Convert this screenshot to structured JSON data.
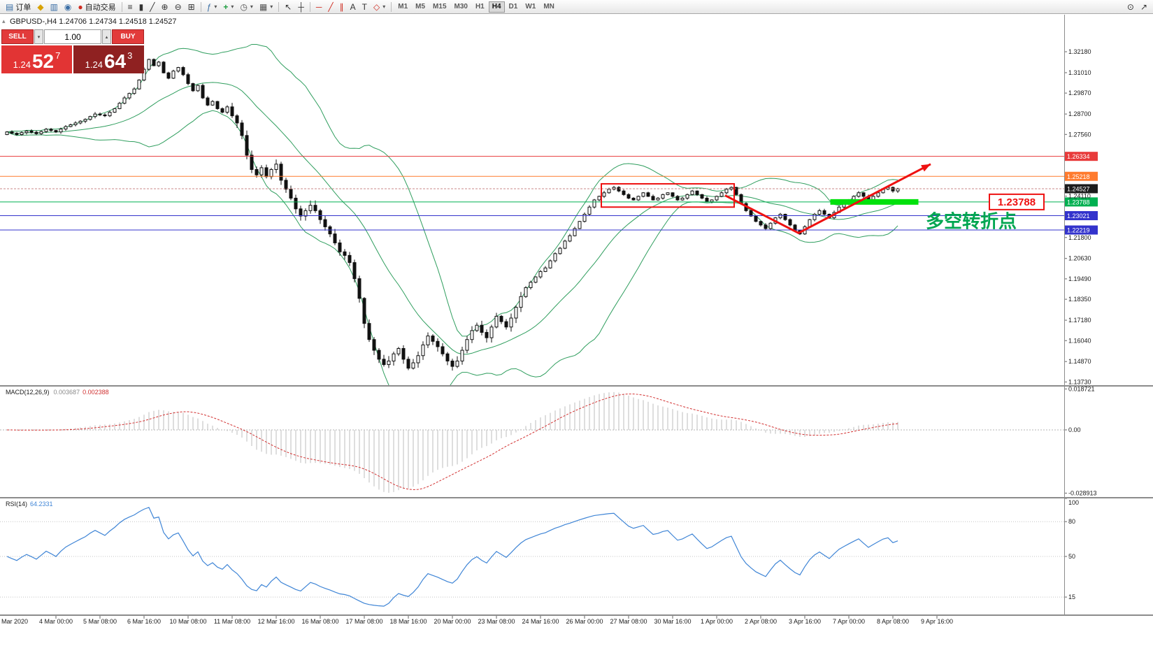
{
  "toolbar": {
    "order_label": "订单",
    "autotrade_label": "自动交易",
    "timeframes": [
      "M1",
      "M5",
      "M15",
      "M30",
      "H1",
      "H4",
      "D1",
      "W1",
      "MN"
    ],
    "active_timeframe": "H4",
    "icons": {
      "order": "▤",
      "chart": "◆",
      "profile": "▥",
      "web": "◉",
      "autotrade": "●",
      "bars": "≡",
      "candles": "▮",
      "linechart": "╱",
      "zoom_in": "⊕",
      "zoom_out": "⊖",
      "tile": "⊞",
      "indicators": "ƒ",
      "add": "+",
      "periods": "◷",
      "template": "▦",
      "cursor": "↖",
      "crosshair": "┼",
      "hline": "─",
      "trendline": "╱",
      "channel": "∥",
      "text": "A",
      "label": "T",
      "shapes": "◇",
      "caret": "▾",
      "caret_up": "▴",
      "caret_down": "▾",
      "magnifier": "⊙",
      "pointer": "↗",
      "collapse": "▴"
    }
  },
  "symbol_info": {
    "text": "GBPUSD-,H4   1.24706 1.24734 1.24518 1.24527"
  },
  "trade_panel": {
    "sell_label": "SELL",
    "buy_label": "BUY",
    "volume": "1.00",
    "sell_price": {
      "big": "1.24",
      "mid": "52",
      "sup": "7"
    },
    "buy_price": {
      "big": "1.24",
      "mid": "64",
      "sup": "3"
    }
  },
  "macd": {
    "label": "MACD(12,26,9)",
    "value_main": "0.003687",
    "value_signal": "0.002388",
    "fast": 12,
    "slow": 26,
    "signal_period": 9,
    "ylim": [
      -0.0307,
      0.0198
    ],
    "scale_labels": [
      {
        "text": "0.018721",
        "value": 0.018721
      },
      {
        "text": "0.00",
        "value": 0
      },
      {
        "text": "-0.028913",
        "value": -0.028913
      }
    ],
    "histogram_color": "#bdbdbd",
    "signal_color": "#d23030"
  },
  "rsi": {
    "label": "RSI(14)",
    "value": "64.2331",
    "period": 14,
    "ylim": [
      0,
      100
    ],
    "levels": [
      80,
      50,
      15
    ],
    "scale_labels": [
      {
        "text": "100",
        "value": 100
      },
      {
        "text": "80",
        "value": 80
      },
      {
        "text": "50",
        "value": 50
      },
      {
        "text": "15",
        "value": 15
      }
    ],
    "color": "#3f85d6"
  },
  "chart_data": {
    "type": "candlestick",
    "symbol": "GBPUSD-",
    "timeframe": "H4",
    "display_ohlc": {
      "open": "1.24706",
      "high": "1.24734",
      "low": "1.24518",
      "close": "1.24527"
    },
    "ylim": [
      1.1355,
      1.3425
    ],
    "closes": [
      1.277,
      1.2762,
      1.2755,
      1.2766,
      1.2775,
      1.2768,
      1.276,
      1.2772,
      1.2785,
      1.2778,
      1.277,
      1.2786,
      1.28,
      1.281,
      1.282,
      1.283,
      1.284,
      1.2856,
      1.287,
      1.2865,
      1.286,
      1.288,
      1.29,
      1.293,
      1.296,
      1.2985,
      1.301,
      1.306,
      1.312,
      1.3175,
      1.314,
      1.316,
      1.31,
      1.307,
      1.311,
      1.313,
      1.309,
      1.304,
      1.3,
      1.303,
      1.296,
      1.292,
      1.294,
      1.29,
      1.288,
      1.291,
      1.286,
      1.282,
      1.275,
      1.264,
      1.256,
      1.253,
      1.257,
      1.252,
      1.256,
      1.259,
      1.25,
      1.245,
      1.24,
      1.234,
      1.23,
      1.233,
      1.236,
      1.233,
      1.228,
      1.224,
      1.22,
      1.215,
      1.21,
      1.208,
      1.204,
      1.195,
      1.184,
      1.17,
      1.161,
      1.155,
      1.15,
      1.147,
      1.149,
      1.153,
      1.156,
      1.15,
      1.145,
      1.148,
      1.152,
      1.158,
      1.163,
      1.16,
      1.157,
      1.153,
      1.149,
      1.146,
      1.149,
      1.155,
      1.161,
      1.166,
      1.169,
      1.165,
      1.162,
      1.168,
      1.174,
      1.171,
      1.168,
      1.173,
      1.179,
      1.185,
      1.19,
      1.193,
      1.196,
      1.199,
      1.201,
      1.205,
      1.209,
      1.212,
      1.216,
      1.219,
      1.223,
      1.227,
      1.231,
      1.235,
      1.239,
      1.241,
      1.243,
      1.245,
      1.246,
      1.244,
      1.242,
      1.24,
      1.239,
      1.241,
      1.243,
      1.241,
      1.239,
      1.24,
      1.242,
      1.243,
      1.241,
      1.239,
      1.24,
      1.242,
      1.244,
      1.242,
      1.24,
      1.238,
      1.239,
      1.241,
      1.243,
      1.245,
      1.246,
      1.242,
      1.237,
      1.233,
      1.23,
      1.227,
      1.225,
      1.223,
      1.226,
      1.229,
      1.231,
      1.228,
      1.225,
      1.222,
      1.22,
      1.224,
      1.228,
      1.231,
      1.233,
      1.231,
      1.229,
      1.232,
      1.235,
      1.237,
      1.239,
      1.241,
      1.243,
      1.241,
      1.239,
      1.241,
      1.243,
      1.245,
      1.246,
      1.244,
      1.24527
    ],
    "bollinger": {
      "period": 20,
      "deviation": 2,
      "color": "#2f9e5e"
    },
    "up_color": "#ffffff",
    "down_color": "#111111",
    "outline_color": "#111111",
    "price_ticks": [
      "1.32180",
      "1.31010",
      "1.29870",
      "1.28700",
      "1.27560",
      "1.24110",
      "1.21800",
      "1.20630",
      "1.19490",
      "1.18350",
      "1.17180",
      "1.16040",
      "1.14870",
      "1.13730"
    ],
    "hlines": [
      {
        "price": 1.26334,
        "label": "1.26334",
        "color": "#e83b3b"
      },
      {
        "price": 1.25218,
        "label": "1.25218",
        "color": "#ff7b2e"
      },
      {
        "price": 1.23788,
        "label": "1.23788",
        "color": "#00b050"
      },
      {
        "price": 1.23021,
        "label": "1.23021",
        "color": "#3333cc"
      },
      {
        "price": 1.22219,
        "label": "1.22219",
        "color": "#3333cc"
      }
    ],
    "current_price": {
      "price": 1.24527,
      "label": "1.24527",
      "label_bg": "#1c1c1c",
      "line_color": "#c98888"
    },
    "annotations": {
      "rectangle": {
        "i0": 122,
        "i1": 148,
        "p0": 1.235,
        "p1": 1.248,
        "color": "#ee1111"
      },
      "zigzag": {
        "points": [
          [
            147,
            1.2415
          ],
          [
            162,
            1.2205
          ],
          [
            189,
            1.259
          ]
        ],
        "color": "#ee1111"
      },
      "green_bar": {
        "i0": 168.5,
        "i1": 186.5,
        "price": 1.23788,
        "color": "#00e10c"
      },
      "price_label_box": {
        "text": "1.23788",
        "i": 201,
        "price": 1.23788,
        "color": "#ee1111"
      },
      "cn_label": {
        "text": "多空转折点",
        "i": 188,
        "price": 1.2235,
        "color": "#00a651"
      }
    },
    "time_axis": {
      "first_label": "Mar 2020",
      "labels": [
        "4 Mar 00:00",
        "5 Mar 08:00",
        "6 Mar 16:00",
        "10 Mar 08:00",
        "11 Mar 08:00",
        "12 Mar 16:00",
        "16 Mar 08:00",
        "17 Mar 08:00",
        "18 Mar 16:00",
        "20 Mar 00:00",
        "23 Mar 08:00",
        "24 Mar 16:00",
        "26 Mar 00:00",
        "27 Mar 08:00",
        "30 Mar 16:00",
        "1 Apr 00:00",
        "2 Apr 08:00",
        "3 Apr 16:00",
        "7 Apr 00:00",
        "8 Apr 08:00",
        "9 Apr 16:00"
      ],
      "start_x": 80,
      "step": 63
    }
  }
}
